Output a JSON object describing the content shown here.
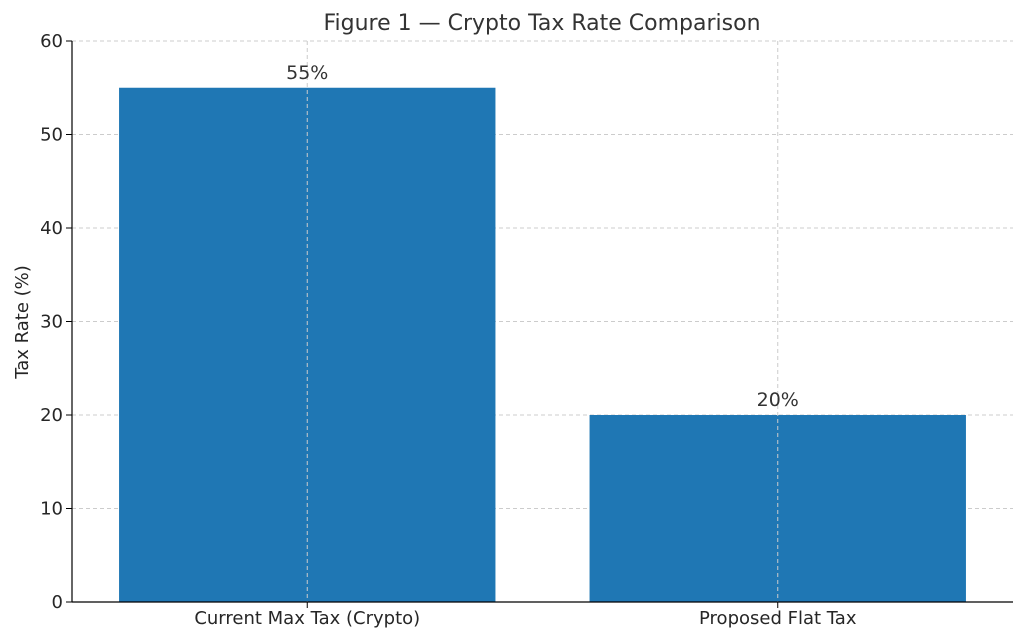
{
  "chart_data": {
    "type": "bar",
    "title": "Figure 1 — Crypto Tax Rate Comparison",
    "xlabel": "",
    "ylabel": "Tax Rate (%)",
    "categories": [
      "Current Max Tax (Crypto)",
      "Proposed Flat Tax"
    ],
    "values": [
      55,
      20
    ],
    "data_labels": [
      "55%",
      "20%"
    ],
    "ylim": [
      0,
      60
    ],
    "yticks": [
      "0",
      "10",
      "20",
      "30",
      "40",
      "50",
      "60"
    ],
    "grid": true,
    "bar_color": "#1f77b4"
  }
}
